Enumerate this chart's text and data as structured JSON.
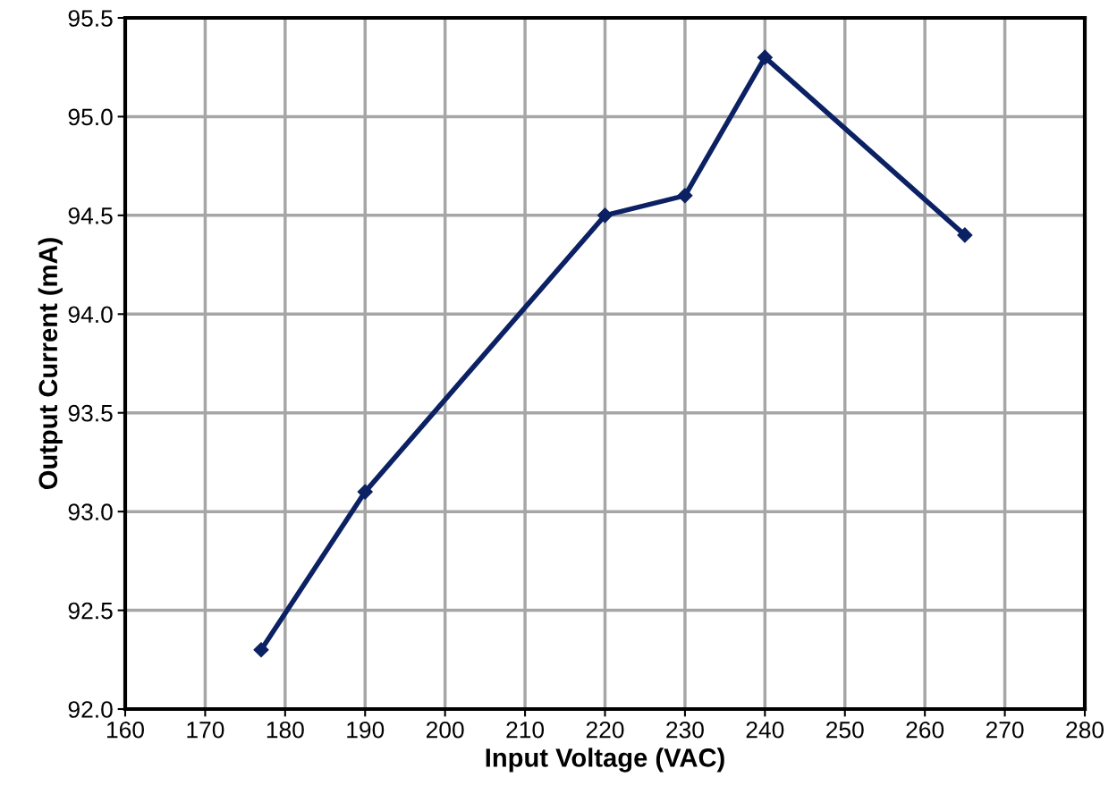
{
  "chart_data": {
    "type": "line",
    "xlabel": "Input Voltage (VAC)",
    "ylabel": "Output Current (mA)",
    "x": [
      177,
      190,
      220,
      230,
      240,
      265
    ],
    "series": [
      {
        "color": "#0b2163",
        "values": [
          92.3,
          93.1,
          94.5,
          94.6,
          95.3,
          94.4
        ]
      }
    ],
    "xlim": [
      160,
      280
    ],
    "xticks": [
      160,
      170,
      180,
      190,
      200,
      210,
      220,
      230,
      240,
      250,
      260,
      270,
      280
    ],
    "ylim": [
      92.0,
      95.5
    ],
    "yticks": [
      {
        "value": 92.0,
        "label": "92.0"
      },
      {
        "value": 92.5,
        "label": "92.5"
      },
      {
        "value": 93.0,
        "label": "93.0"
      },
      {
        "value": 93.5,
        "label": "93.5"
      },
      {
        "value": 94.0,
        "label": "94.0"
      },
      {
        "value": 94.5,
        "label": "94.5"
      },
      {
        "value": 95.0,
        "label": "95.0"
      },
      {
        "value": 95.5,
        "label": "95.5"
      }
    ],
    "grid": true,
    "marker": "diamond",
    "line_style": "solid"
  }
}
